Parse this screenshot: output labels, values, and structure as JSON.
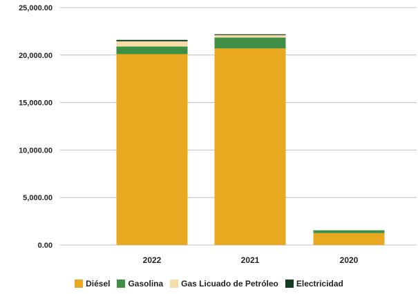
{
  "chart_data": {
    "type": "bar",
    "stacked": true,
    "categories": [
      "2022",
      "2021",
      "2020"
    ],
    "series": [
      {
        "name": "Diésel",
        "color": "#E8A820",
        "values": [
          20100,
          20700,
          1250
        ]
      },
      {
        "name": "Gasolina",
        "color": "#3F8F46",
        "values": [
          800,
          1150,
          300
        ]
      },
      {
        "name": "Gas Licuado de Petróleo",
        "color": "#F5DCA8",
        "values": [
          550,
          250,
          0
        ]
      },
      {
        "name": "Electricidad",
        "color": "#153D22",
        "values": [
          150,
          90,
          0
        ]
      }
    ],
    "yticks": [
      "0.00",
      "5,000.00",
      "10,000.00",
      "15,000.00",
      "20,000.00",
      "25,000.00"
    ],
    "ylim": [
      0,
      25000
    ],
    "grid": true,
    "legend_position": "bottom"
  }
}
